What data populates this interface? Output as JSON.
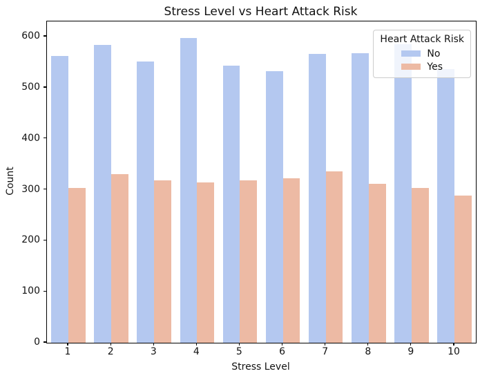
{
  "chart_data": {
    "type": "bar",
    "title": "Stress Level vs Heart Attack Risk",
    "xlabel": "Stress Level",
    "ylabel": "Count",
    "categories": [
      "1",
      "2",
      "3",
      "4",
      "5",
      "6",
      "7",
      "8",
      "9",
      "10"
    ],
    "series": [
      {
        "name": "No",
        "color": "#b4c8f0",
        "values": [
          562,
          584,
          551,
          597,
          543,
          533,
          567,
          568,
          585,
          536
        ]
      },
      {
        "name": "Yes",
        "color": "#edbaa4",
        "values": [
          304,
          330,
          318,
          314,
          318,
          323,
          336,
          311,
          304,
          288
        ]
      }
    ],
    "legend": {
      "title": "Heart Attack Risk",
      "position": "upper right"
    },
    "ylim": [
      0,
      630
    ],
    "yticks": [
      0,
      100,
      200,
      300,
      400,
      500,
      600
    ],
    "grid": false,
    "colors": {
      "no_bar": "#b4c8f0",
      "yes_bar": "#edbaa4",
      "spine": "#000000",
      "legend_border": "#cccccc"
    }
  }
}
